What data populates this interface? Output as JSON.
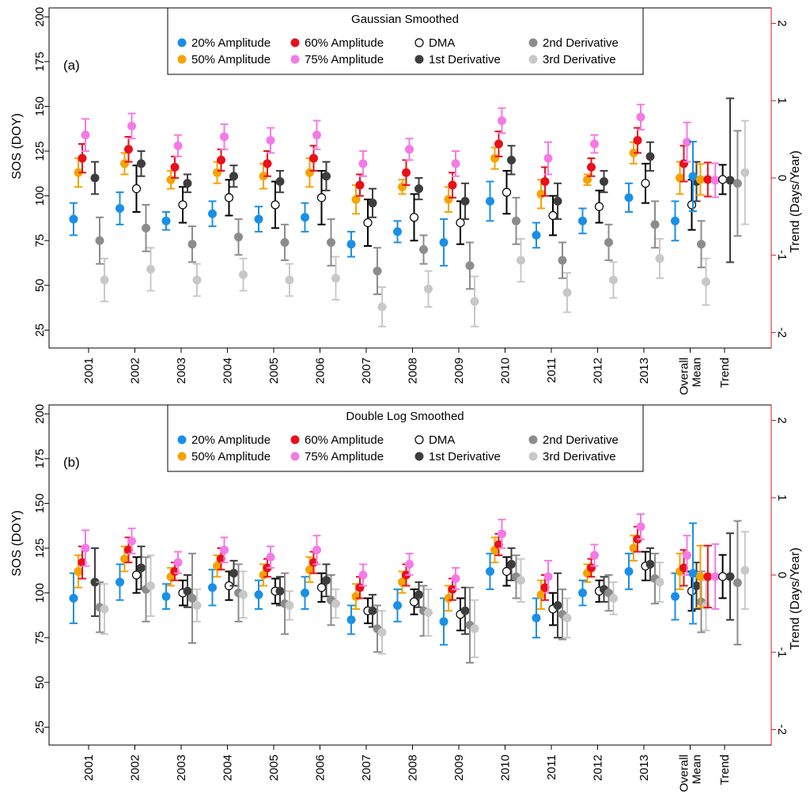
{
  "chart_data": [
    {
      "type": "scatter",
      "panel_label": "(a)",
      "legend_title": "Gaussian Smoothed",
      "ylabel": "SOS (DOY)",
      "ylabel_right": "Trend (Days/Year)",
      "ylim": [
        15,
        205
      ],
      "ylim_right": [
        -2.2,
        2.2
      ],
      "yticks": [
        "25",
        "50",
        "75",
        "100",
        "125",
        "150",
        "175",
        "200"
      ],
      "yticks_right": [
        "-2",
        "-1",
        "0",
        "1",
        "2"
      ],
      "categories": [
        "2001",
        "2002",
        "2003",
        "2004",
        "2005",
        "2006",
        "2007",
        "2008",
        "2009",
        "2010",
        "2011",
        "2012",
        "2013",
        "Overall",
        "Mean",
        "Trend"
      ],
      "series": [
        {
          "name": "20% Amplitude",
          "color": "#1a8fe6",
          "marker": "filled",
          "values": [
            87,
            93,
            86,
            90,
            87,
            88,
            73,
            80,
            74,
            97,
            78,
            86,
            99,
            86
          ],
          "err": [
            9,
            9,
            5,
            7,
            7,
            8,
            7,
            6,
            13,
            11,
            7,
            7,
            8,
            11
          ]
        },
        {
          "name": "50% Amplitude",
          "color": "#f5a300",
          "marker": "filled",
          "values": [
            113,
            118,
            109,
            113,
            111,
            113,
            98,
            105,
            98,
            121,
            101,
            109,
            124,
            110
          ],
          "err": [
            8,
            6,
            5,
            6,
            7,
            8,
            8,
            4,
            7,
            6,
            8,
            3,
            6,
            9
          ]
        },
        {
          "name": "60% Amplitude",
          "color": "#e8101a",
          "marker": "filled",
          "values": [
            121,
            126,
            116,
            120,
            118,
            121,
            106,
            113,
            106,
            129,
            108,
            116,
            131,
            118
          ],
          "err": [
            8,
            7,
            6,
            6,
            7,
            7,
            6,
            7,
            7,
            7,
            8,
            5,
            7,
            10
          ]
        },
        {
          "name": "75% Amplitude",
          "color": "#f47ae6",
          "marker": "filled",
          "values": [
            134,
            139,
            128,
            133,
            131,
            134,
            118,
            126,
            118,
            142,
            121,
            129,
            144,
            130
          ],
          "err": [
            9,
            7,
            6,
            7,
            7,
            8,
            7,
            6,
            7,
            7,
            9,
            5,
            7,
            11
          ]
        },
        {
          "name": "DMA",
          "color": "#000000",
          "marker": "open",
          "values": [
            null,
            104,
            95,
            99,
            95,
            99,
            85,
            88,
            85,
            102,
            89,
            94,
            107,
            95
          ],
          "err": [
            null,
            13,
            10,
            10,
            13,
            15,
            13,
            13,
            12,
            12,
            11,
            9,
            11,
            14
          ]
        },
        {
          "name": "1st Derivative",
          "color": "#3d3d3d",
          "marker": "filled",
          "values": [
            110,
            118,
            107,
            111,
            108,
            111,
            96,
            104,
            97,
            120,
            97,
            108,
            122,
            108
          ],
          "err": [
            9,
            7,
            5,
            6,
            6,
            8,
            8,
            6,
            10,
            8,
            10,
            6,
            8,
            11
          ]
        },
        {
          "name": "2nd Derivative",
          "color": "#8c8c8c",
          "marker": "filled",
          "values": [
            75,
            82,
            73,
            77,
            74,
            74,
            58,
            70,
            61,
            86,
            64,
            74,
            84,
            73
          ],
          "err": [
            13,
            13,
            10,
            10,
            10,
            13,
            13,
            8,
            13,
            13,
            10,
            10,
            13,
            13
          ]
        },
        {
          "name": "3rd Derivative",
          "color": "#c8c8c8",
          "marker": "filled",
          "values": [
            53,
            59,
            53,
            56,
            53,
            54,
            38,
            48,
            41,
            64,
            46,
            53,
            65,
            52
          ],
          "err": [
            12,
            12,
            9,
            9,
            9,
            12,
            11,
            10,
            14,
            12,
            11,
            10,
            11,
            13
          ]
        }
      ],
      "trend": {
        "values": [
          0.02,
          -0.02,
          -0.02,
          -0.03,
          -0.02,
          -0.03,
          -0.07,
          0.07
        ],
        "err": [
          0.45,
          0.2,
          0.22,
          0.22,
          0.19,
          1.06,
          0.68,
          0.67
        ]
      }
    },
    {
      "type": "scatter",
      "panel_label": "(b)",
      "legend_title": "Double Log Smoothed",
      "ylabel": "SOS (DOY)",
      "ylabel_right": "Trend (Days/Year)",
      "ylim": [
        15,
        205
      ],
      "ylim_right": [
        -2.2,
        2.2
      ],
      "yticks": [
        "25",
        "50",
        "75",
        "100",
        "125",
        "150",
        "175",
        "200"
      ],
      "yticks_right": [
        "-2",
        "-1",
        "0",
        "1",
        "2"
      ],
      "categories": [
        "2001",
        "2002",
        "2003",
        "2004",
        "2005",
        "2006",
        "2007",
        "2008",
        "2009",
        "2010",
        "2011",
        "2012",
        "2013",
        "Overall",
        "Mean",
        "Trend"
      ],
      "series": [
        {
          "name": "20% Amplitude",
          "color": "#1a8fe6",
          "marker": "filled",
          "values": [
            97,
            106,
            98,
            103,
            99,
            100,
            85,
            93,
            84,
            112,
            86,
            100,
            112,
            98
          ],
          "err": [
            14,
            10,
            7,
            10,
            8,
            9,
            8,
            9,
            13,
            10,
            11,
            7,
            10,
            13
          ]
        },
        {
          "name": "50% Amplitude",
          "color": "#f5a300",
          "marker": "filled",
          "values": [
            112,
            119,
            109,
            115,
            110,
            113,
            98,
            106,
            97,
            124,
            99,
            111,
            125,
            112
          ],
          "err": [
            9,
            7,
            5,
            6,
            6,
            7,
            7,
            6,
            7,
            7,
            8,
            5,
            7,
            10
          ]
        },
        {
          "name": "60% Amplitude",
          "color": "#e8101a",
          "marker": "filled",
          "values": [
            117,
            124,
            112,
            119,
            114,
            117,
            103,
            110,
            102,
            127,
            103,
            114,
            130,
            114
          ],
          "err": [
            9,
            7,
            5,
            6,
            5,
            6,
            6,
            6,
            6,
            6,
            7,
            5,
            7,
            10
          ]
        },
        {
          "name": "75% Amplitude",
          "color": "#f47ae6",
          "marker": "filled",
          "values": [
            125,
            129,
            117,
            124,
            120,
            124,
            110,
            116,
            108,
            133,
            109,
            121,
            137,
            121
          ],
          "err": [
            10,
            7,
            6,
            7,
            6,
            8,
            6,
            6,
            6,
            8,
            9,
            6,
            7,
            11
          ]
        },
        {
          "name": "DMA",
          "color": "#000000",
          "marker": "open",
          "values": [
            null,
            110,
            100,
            104,
            101,
            103,
            90,
            95,
            88,
            112,
            91,
            101,
            115,
            101
          ],
          "err": [
            null,
            10,
            7,
            8,
            7,
            8,
            7,
            7,
            9,
            8,
            9,
            6,
            8,
            11
          ]
        },
        {
          "name": "1st Derivative",
          "color": "#3d3d3d",
          "marker": "filled",
          "values": [
            106,
            114,
            101,
            111,
            101,
            107,
            90,
            99,
            90,
            116,
            93,
            102,
            116,
            104
          ],
          "err": [
            19,
            12,
            9,
            7,
            8,
            9,
            9,
            7,
            13,
            9,
            18,
            7,
            9,
            13
          ]
        },
        {
          "name": "2nd Derivative",
          "color": "#8c8c8c",
          "marker": "filled",
          "values": [
            92,
            102,
            97,
            100,
            94,
            96,
            80,
            90,
            82,
            109,
            88,
            100,
            108,
            95
          ],
          "err": [
            14,
            18,
            25,
            16,
            17,
            14,
            13,
            14,
            21,
            12,
            14,
            10,
            14,
            17
          ]
        },
        {
          "name": "3rd Derivative",
          "color": "#c8c8c8",
          "marker": "filled",
          "values": [
            91,
            104,
            93,
            99,
            93,
            94,
            78,
            89,
            80,
            107,
            86,
            97,
            106,
            93
          ],
          "err": [
            14,
            17,
            9,
            13,
            8,
            8,
            12,
            13,
            16,
            12,
            11,
            9,
            11,
            14
          ]
        }
      ],
      "trend": {
        "values": [
          0.02,
          -0.02,
          -0.02,
          -0.02,
          -0.02,
          -0.02,
          -0.1,
          0.06
        ],
        "err": [
          0.65,
          0.4,
          0.4,
          0.42,
          0.28,
          0.56,
          0.8,
          0.5
        ]
      }
    }
  ]
}
